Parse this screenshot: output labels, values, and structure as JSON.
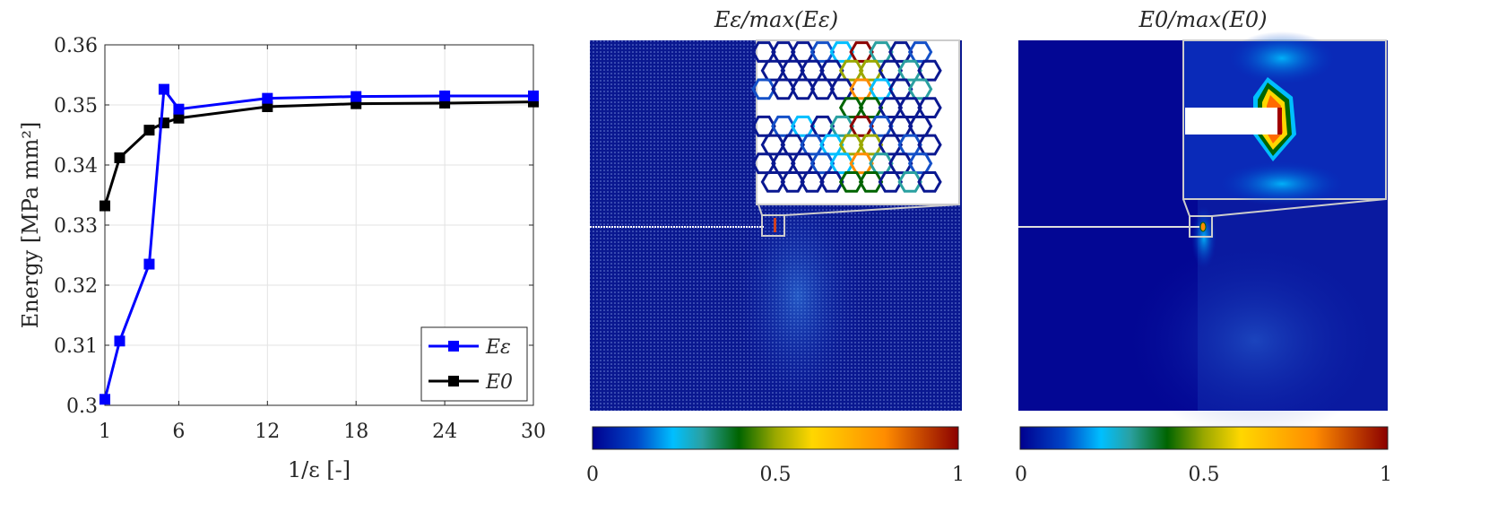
{
  "chart_data": [
    {
      "type": "line",
      "title": "",
      "xlabel": "1/ε [-]",
      "ylabel": "Energy [MPa mm²]",
      "x": [
        1,
        2,
        4,
        5,
        6,
        12,
        18,
        24,
        30
      ],
      "xlim": [
        1,
        30
      ],
      "ylim": [
        0.3,
        0.36
      ],
      "xticks": [
        "1",
        "6",
        "12",
        "18",
        "24",
        "30"
      ],
      "yticks": [
        "0.3",
        "0.31",
        "0.32",
        "0.33",
        "0.34",
        "0.35",
        "0.36"
      ],
      "grid": true,
      "legend_position": "bottom-right",
      "series": [
        {
          "name": "E_ε",
          "label": "Eε",
          "color": "#0000ff",
          "marker": "square",
          "values": [
            0.301,
            0.3107,
            0.3235,
            0.3526,
            0.3493,
            0.3511,
            0.3514,
            0.3515,
            0.3515
          ]
        },
        {
          "name": "E_0",
          "label": "E0",
          "color": "#000000",
          "marker": "square",
          "values": [
            0.3332,
            0.3412,
            0.3458,
            0.347,
            0.3478,
            0.3497,
            0.3502,
            0.3503,
            0.3505
          ]
        }
      ]
    },
    {
      "type": "heatmap",
      "title": "Eε/max(Eε)",
      "colorbar": {
        "min": 0,
        "max": 1,
        "ticks": [
          "0",
          "0.5",
          "1"
        ]
      },
      "colormap": [
        "#00008f",
        "#00bfff",
        "#006400",
        "#ffd700",
        "#ff8c00",
        "#8b0000"
      ]
    },
    {
      "type": "heatmap",
      "title": "E0/max(E0)",
      "colorbar": {
        "min": 0,
        "max": 1,
        "ticks": [
          "0",
          "0.5",
          "1"
        ]
      },
      "colormap": [
        "#00008f",
        "#00bfff",
        "#006400",
        "#ffd700",
        "#ff8c00",
        "#8b0000"
      ]
    }
  ]
}
